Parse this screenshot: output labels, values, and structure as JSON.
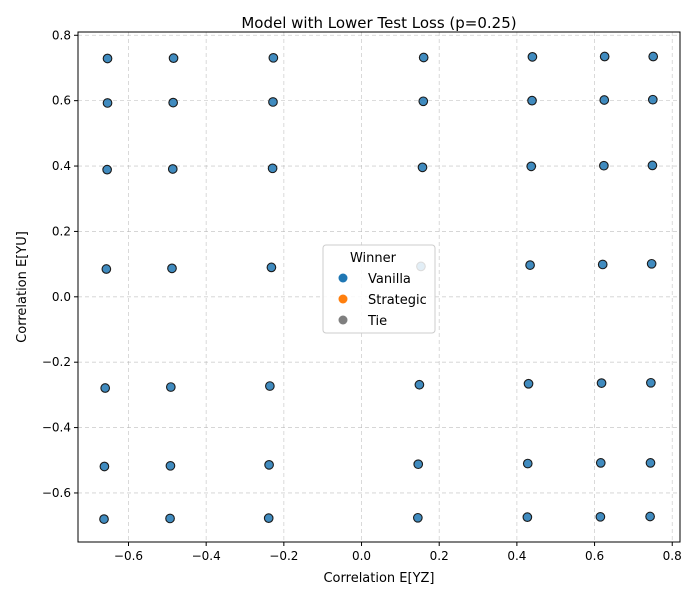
{
  "chart_data": {
    "type": "scatter",
    "title": "Model with Lower Test Loss (p=0.25)",
    "xlabel": "Correlation E[YZ]",
    "ylabel": "Correlation E[YU]",
    "xlim": [
      -0.73,
      0.82
    ],
    "ylim": [
      -0.75,
      0.81
    ],
    "xticks": [
      -0.6,
      -0.4,
      -0.2,
      0.0,
      0.2,
      0.4,
      0.6,
      0.8
    ],
    "xtick_labels": [
      "−0.6",
      "−0.4",
      "−0.2",
      "0.0",
      "0.2",
      "0.4",
      "0.6",
      "0.8"
    ],
    "yticks": [
      -0.6,
      -0.4,
      -0.2,
      0.0,
      0.2,
      0.4,
      0.6,
      0.8
    ],
    "ytick_labels": [
      "−0.6",
      "−0.4",
      "−0.2",
      "0.0",
      "0.2",
      "0.4",
      "0.6",
      "0.8"
    ],
    "grid": true,
    "legend": {
      "title": "Winner",
      "placement": "center-right",
      "entries": [
        {
          "label": "Vanilla",
          "color": "#1f77b4"
        },
        {
          "label": "Strategic",
          "color": "#ff7f0e"
        },
        {
          "label": "Tie",
          "color": "#7f7f7f"
        }
      ]
    },
    "series": [
      {
        "name": "Vanilla",
        "color": "#1f77b4",
        "points": [
          [
            -0.654,
            0.729
          ],
          [
            -0.484,
            0.73
          ],
          [
            -0.227,
            0.731
          ],
          [
            0.16,
            0.732
          ],
          [
            0.44,
            0.734
          ],
          [
            0.626,
            0.735
          ],
          [
            0.751,
            0.735
          ],
          [
            -0.654,
            0.593
          ],
          [
            -0.485,
            0.594
          ],
          [
            -0.228,
            0.596
          ],
          [
            0.159,
            0.598
          ],
          [
            0.439,
            0.6
          ],
          [
            0.625,
            0.602
          ],
          [
            0.75,
            0.603
          ],
          [
            -0.655,
            0.389
          ],
          [
            -0.486,
            0.391
          ],
          [
            -0.229,
            0.393
          ],
          [
            0.157,
            0.396
          ],
          [
            0.437,
            0.399
          ],
          [
            0.624,
            0.401
          ],
          [
            0.749,
            0.402
          ],
          [
            -0.657,
            0.085
          ],
          [
            -0.488,
            0.087
          ],
          [
            -0.232,
            0.09
          ],
          [
            0.153,
            0.093
          ],
          [
            0.434,
            0.097
          ],
          [
            0.621,
            0.099
          ],
          [
            0.747,
            0.101
          ],
          [
            -0.66,
            -0.279
          ],
          [
            -0.491,
            -0.276
          ],
          [
            -0.236,
            -0.273
          ],
          [
            0.149,
            -0.269
          ],
          [
            0.43,
            -0.266
          ],
          [
            0.618,
            -0.264
          ],
          [
            0.745,
            -0.263
          ],
          [
            -0.662,
            -0.519
          ],
          [
            -0.492,
            -0.517
          ],
          [
            -0.238,
            -0.514
          ],
          [
            0.146,
            -0.512
          ],
          [
            0.428,
            -0.51
          ],
          [
            0.616,
            -0.508
          ],
          [
            0.744,
            -0.508
          ],
          [
            -0.663,
            -0.68
          ],
          [
            -0.493,
            -0.678
          ],
          [
            -0.239,
            -0.677
          ],
          [
            0.145,
            -0.676
          ],
          [
            0.427,
            -0.674
          ],
          [
            0.615,
            -0.673
          ],
          [
            0.743,
            -0.672
          ]
        ]
      }
    ]
  }
}
